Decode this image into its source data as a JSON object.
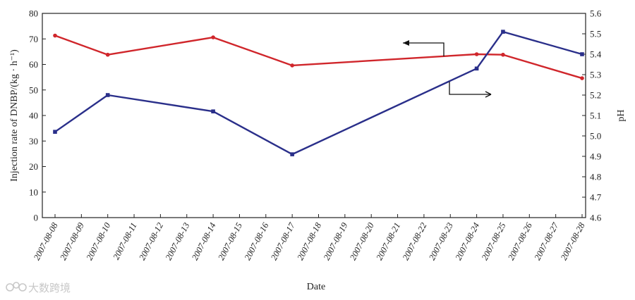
{
  "chart_data": {
    "type": "line",
    "xlabel": "Date",
    "ylabel_left": "Injection rate of DNBP/(kg · h⁻¹)",
    "ylabel_right": "pH",
    "categories": [
      "2007-08-08",
      "2007-08-09",
      "2007-08-10",
      "2007-08-11",
      "2007-08-12",
      "2007-08-13",
      "2007-08-14",
      "2007-08-15",
      "2007-08-16",
      "2007-08-17",
      "2007-08-18",
      "2007-08-19",
      "2007-08-20",
      "2007-08-21",
      "2007-08-22",
      "2007-08-23",
      "2007-08-24",
      "2007-08-25",
      "2007-08-26",
      "2007-08-27",
      "2007-08-28"
    ],
    "ylim_left": [
      0,
      80
    ],
    "yticks_left": [
      0,
      10,
      20,
      30,
      40,
      50,
      60,
      70,
      80
    ],
    "ylim_right": [
      4.6,
      5.6
    ],
    "yticks_right": [
      "4.6",
      "4.7",
      "4.8",
      "4.9",
      "5.0",
      "5.1",
      "5.2",
      "5.3",
      "5.4",
      "5.5",
      "5.6"
    ],
    "grid": false,
    "series": [
      {
        "axis": "left",
        "color": "#d0262b",
        "marker": "circle",
        "points": [
          {
            "x": "2007-08-08",
            "y": 71.3
          },
          {
            "x": "2007-08-10",
            "y": 63.8
          },
          {
            "x": "2007-08-14",
            "y": 70.6
          },
          {
            "x": "2007-08-17",
            "y": 59.6
          },
          {
            "x": "2007-08-24",
            "y": 64.0
          },
          {
            "x": "2007-08-25",
            "y": 63.8
          },
          {
            "x": "2007-08-28",
            "y": 54.6
          }
        ]
      },
      {
        "axis": "right",
        "color": "#2a2f8a",
        "marker": "square",
        "points": [
          {
            "x": "2007-08-08",
            "y": 5.02
          },
          {
            "x": "2007-08-10",
            "y": 5.2
          },
          {
            "x": "2007-08-14",
            "y": 5.12
          },
          {
            "x": "2007-08-17",
            "y": 4.91
          },
          {
            "x": "2007-08-24",
            "y": 5.33
          },
          {
            "x": "2007-08-25",
            "y": 5.51
          },
          {
            "x": "2007-08-28",
            "y": 5.4
          }
        ]
      }
    ],
    "annotations": [
      {
        "type": "arrow",
        "points_to": "left axis",
        "series": "red"
      },
      {
        "type": "arrow",
        "points_to": "right axis",
        "series": "blue"
      }
    ]
  },
  "watermark": {
    "icon": "logo-icon",
    "text": "大数跨境"
  }
}
